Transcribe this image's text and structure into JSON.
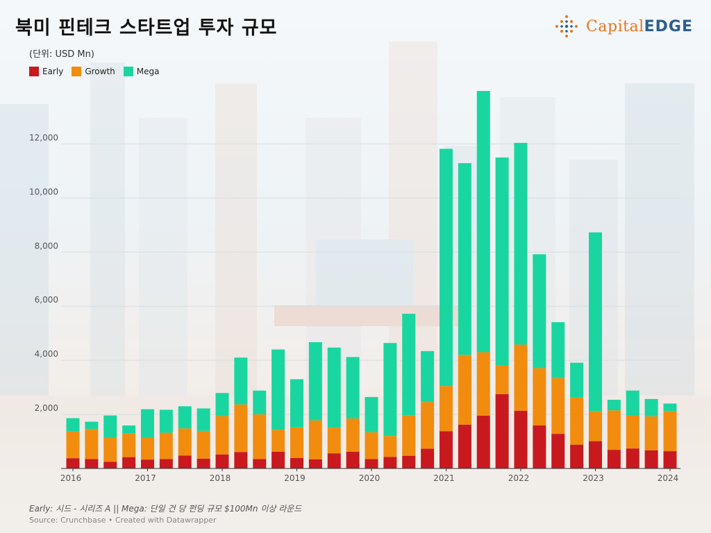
{
  "title": "북미 핀테크 스타트업 투자 규모",
  "logo": {
    "text_main": "Capital",
    "text_accent": "EDGE"
  },
  "unit_label": "(단위: USD Mn)",
  "footnote": "Early: 시드 - 시리즈 A || Mega: 단일 건 당 펀딩 규모 $100Mn 이상 라운드",
  "source": "Source: Crunchbase • Created with Datawrapper",
  "colors": {
    "early": "#c8191f",
    "growth": "#f28c0f",
    "mega": "#19d6a0",
    "grid": "#d9dcde",
    "axis_text": "#555555"
  },
  "chart_data": {
    "type": "bar",
    "stacked": true,
    "x_tick_labels": [
      "2016",
      "2017",
      "2018",
      "2019",
      "2020",
      "2021",
      "2022",
      "2023",
      "2024"
    ],
    "y_ticks": [
      "2,000",
      "4,000",
      "6,000",
      "8,000",
      "10,000",
      "12,000"
    ],
    "ylim": [
      0,
      14500
    ],
    "grid": true,
    "legend_position": "top-left",
    "categories": [
      "2016 Q1",
      "2016 Q2",
      "2016 Q3",
      "2016 Q4",
      "2017 Q1",
      "2017 Q2",
      "2017 Q3",
      "2017 Q4",
      "2018 Q1",
      "2018 Q2",
      "2018 Q3",
      "2018 Q4",
      "2019 Q1",
      "2019 Q2",
      "2019 Q3",
      "2019 Q4",
      "2020 Q1",
      "2020 Q2",
      "2020 Q3",
      "2020 Q4",
      "2021 Q1",
      "2021 Q2",
      "2021 Q3",
      "2021 Q4",
      "2022 Q1",
      "2022 Q2",
      "2022 Q3",
      "2022 Q4",
      "2023 Q1",
      "2023 Q2",
      "2023 Q3",
      "2023 Q4",
      "2024 Q1"
    ],
    "series": [
      {
        "name": "Early",
        "values": [
          380,
          350,
          250,
          420,
          330,
          350,
          480,
          360,
          520,
          610,
          350,
          620,
          390,
          340,
          560,
          620,
          350,
          430,
          470,
          730,
          1380,
          1620,
          1950,
          2750,
          2130,
          1590,
          1280,
          880,
          1010,
          690,
          740,
          670,
          640
        ]
      },
      {
        "name": "Growth",
        "values": [
          990,
          1110,
          880,
          870,
          800,
          970,
          1000,
          1030,
          1420,
          1760,
          1650,
          810,
          1130,
          1440,
          950,
          1230,
          990,
          770,
          1500,
          1730,
          1670,
          2580,
          2350,
          1050,
          2450,
          2120,
          2060,
          1740,
          1110,
          1460,
          1210,
          1260,
          1480
        ]
      },
      {
        "name": "Mega",
        "values": [
          490,
          270,
          830,
          300,
          1060,
          850,
          820,
          830,
          850,
          1730,
          880,
          2970,
          1780,
          2890,
          2960,
          2270,
          1300,
          3440,
          3750,
          1880,
          8770,
          7090,
          9660,
          7700,
          7460,
          4210,
          2070,
          1290,
          6610,
          390,
          930,
          640,
          280
        ]
      }
    ]
  }
}
